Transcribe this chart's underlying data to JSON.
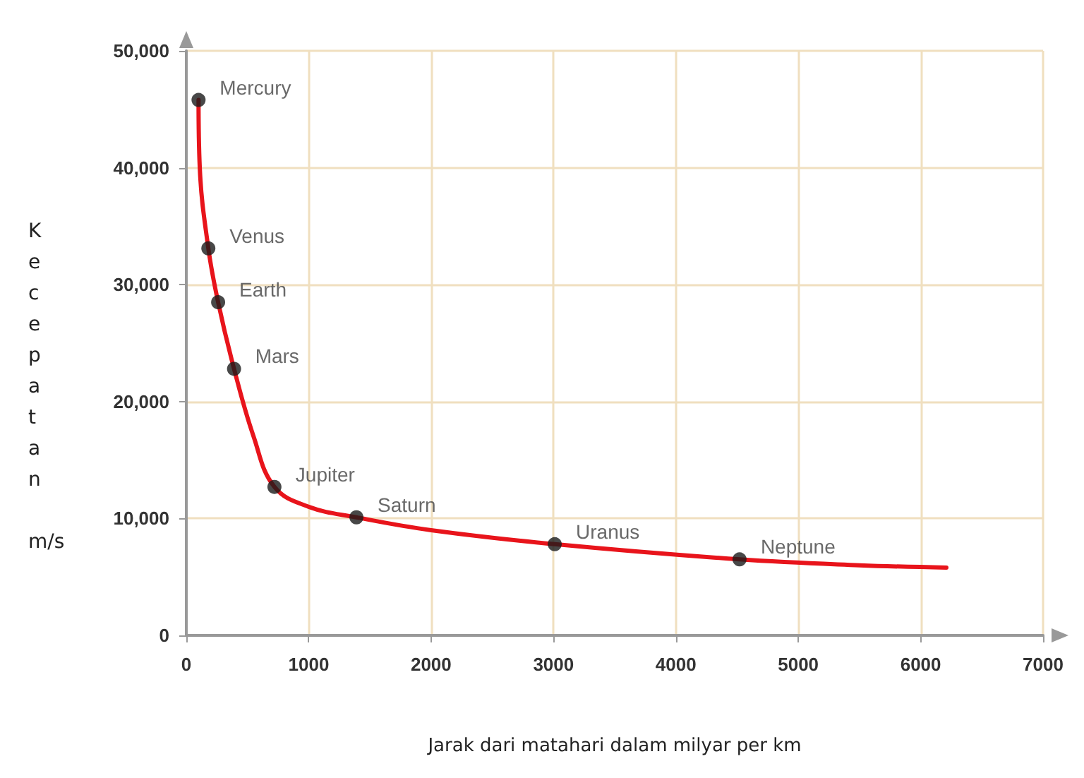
{
  "chart_data": {
    "type": "line",
    "xlabel": "Jarak dari matahari dalam milyar per km",
    "ylabel": "Kecepatan m/s",
    "xlim": [
      0,
      7000
    ],
    "xticks": [
      0,
      1000,
      2000,
      3000,
      4000,
      5000,
      6000,
      7000
    ],
    "ylim": [
      0,
      50000
    ],
    "yticks": [
      0,
      {
        "value": 10000,
        "label": "10,000"
      },
      {
        "value": 20000,
        "label": "20,000"
      },
      {
        "value": 30000,
        "label": "30,000"
      },
      {
        "value": 40000,
        "label": "40,000"
      },
      {
        "value": 50000,
        "label": "50,000"
      }
    ],
    "grid": true,
    "series": [
      {
        "color": "#e8141b",
        "marker": "none",
        "line_style": "solid",
        "x": [
          100,
          110,
          180,
          260,
          390,
          550,
          720,
          1000,
          1390,
          2000,
          3010,
          4520,
          5500,
          6210
        ],
        "values": [
          45800,
          40000,
          33100,
          28500,
          22800,
          17000,
          12700,
          11000,
          10100,
          9000,
          7800,
          6500,
          6000,
          5800
        ]
      },
      {
        "type": "scatter",
        "color": "#1a1a1a",
        "marker": "circle",
        "x": [
          100,
          180,
          260,
          390,
          720,
          1390,
          3010,
          4520
        ],
        "values": [
          45800,
          33100,
          28500,
          22800,
          12700,
          10100,
          7800,
          6500
        ],
        "value_labels": [
          "Mercury",
          "Venus",
          "Earth",
          "Mars",
          "Jupiter",
          "Saturn",
          "Uranus",
          "Neptune"
        ]
      }
    ]
  }
}
